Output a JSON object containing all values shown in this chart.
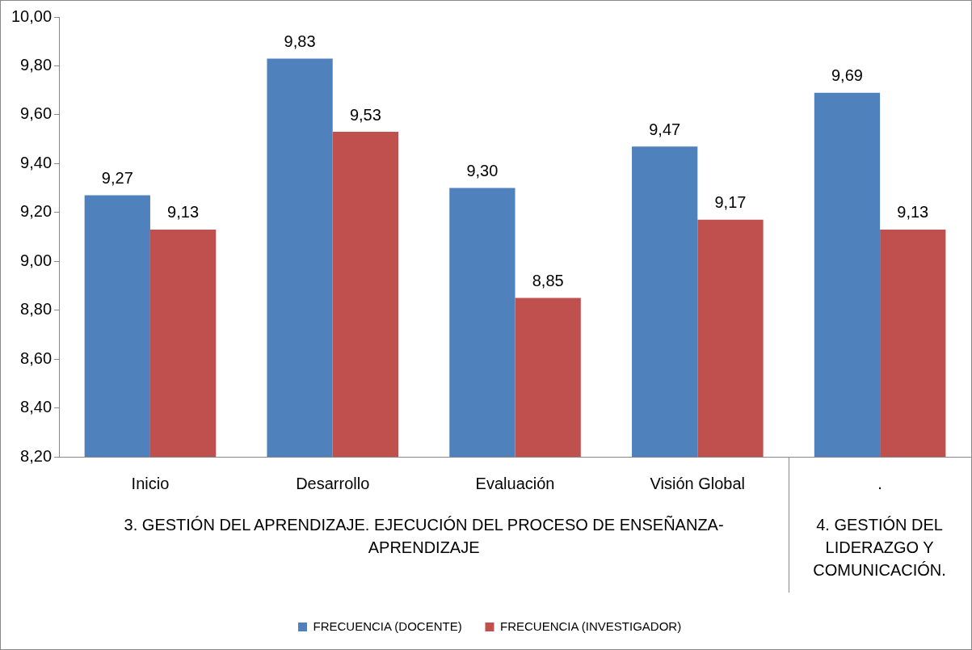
{
  "chart_data": {
    "type": "bar",
    "categories": [
      "Inicio",
      "Desarrollo",
      "Evaluación",
      "Visión Global",
      "."
    ],
    "series": [
      {
        "name": "FRECUENCIA (DOCENTE)",
        "color": "#4f81bd",
        "values": [
          9.27,
          9.83,
          9.3,
          9.47,
          9.69
        ],
        "value_labels": [
          "9,27",
          "9,83",
          "9,30",
          "9,47",
          "9,69"
        ]
      },
      {
        "name": "FRECUENCIA (INVESTIGADOR)",
        "color": "#c0504d",
        "values": [
          9.13,
          9.53,
          8.85,
          9.17,
          9.13
        ],
        "value_labels": [
          "9,13",
          "9,53",
          "8,85",
          "9,17",
          "9,13"
        ]
      }
    ],
    "ylim": [
      8.2,
      10
    ],
    "yticks": [
      {
        "value": 8.2,
        "label": "8,20"
      },
      {
        "value": 8.4,
        "label": "8,40"
      },
      {
        "value": 8.6,
        "label": "8,60"
      },
      {
        "value": 8.8,
        "label": "8,80"
      },
      {
        "value": 9,
        "label": "9,00"
      },
      {
        "value": 9.2,
        "label": "9,20"
      },
      {
        "value": 9.4,
        "label": "9,40"
      },
      {
        "value": 9.6,
        "label": "9,60"
      },
      {
        "value": 9.8,
        "label": "9,80"
      },
      {
        "value": 10,
        "label": "10,00"
      }
    ],
    "annotations": [
      "3. GESTIÓN DEL APRENDIZAJE. EJECUCIÓN DEL PROCESO DE ENSEÑANZA-APRENDIZAJE",
      "4. GESTIÓN DEL LIDERAZGO Y COMUNICACIÓN."
    ],
    "legend": "bottom"
  }
}
